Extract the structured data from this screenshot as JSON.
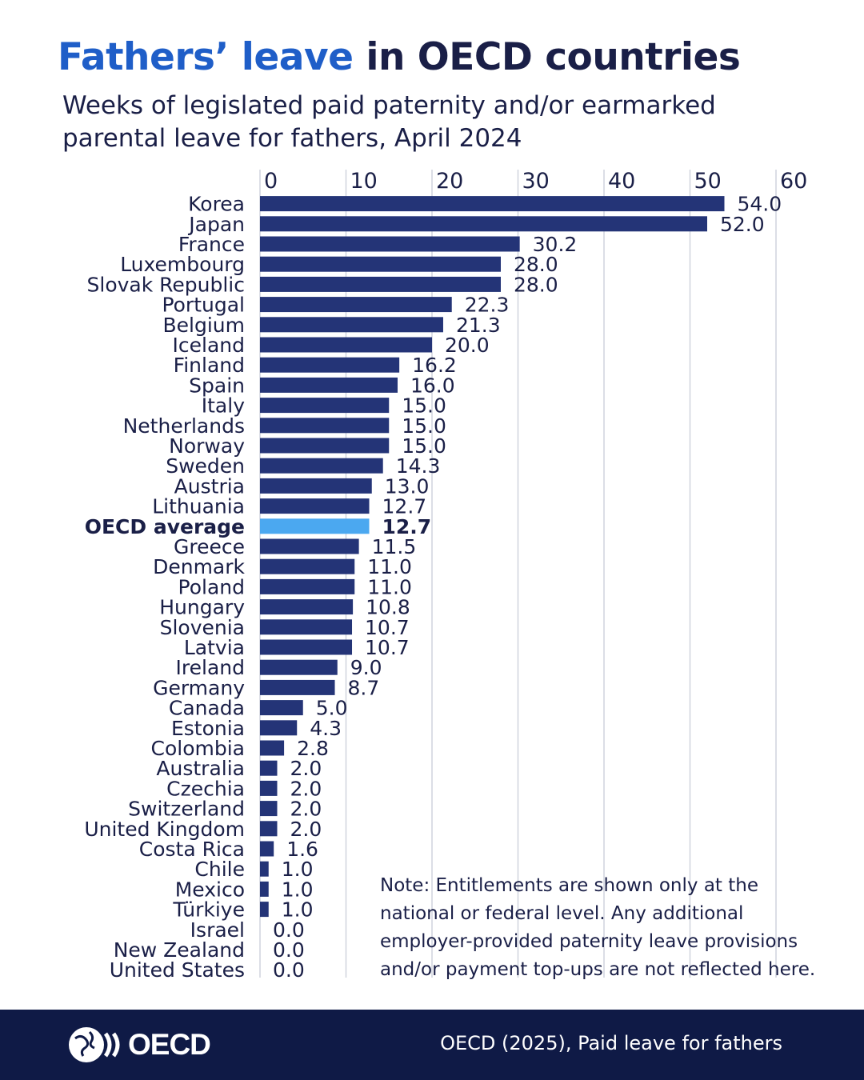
{
  "header": {
    "title_accent": "Fathers’ leave",
    "title_rest": " in OECD countries",
    "subtitle": "Weeks of legislated paid paternity and/or earmarked parental leave for fathers, April 2024"
  },
  "note": "Note: Entitlements are shown only at the national or federal level. Any additional employer-provided paternity leave provisions and/or payment top-ups are not reflected here.",
  "footer": {
    "logo_text": "OECD",
    "source": "OECD (2025), Paid leave for fathers"
  },
  "colors": {
    "bar": "#243477",
    "highlight": "#4ba8f0",
    "text": "#1a1f47",
    "accent": "#1f5ec8",
    "footer_bg": "#0f1a46"
  },
  "chart_data": {
    "type": "bar",
    "orientation": "horizontal",
    "title": "Fathers’ leave in OECD countries",
    "xlabel": "",
    "ylabel": "",
    "xlim": [
      0,
      60
    ],
    "xticks": [
      0,
      10,
      20,
      30,
      40,
      50,
      60
    ],
    "grid": true,
    "highlight": "OECD average",
    "categories": [
      "Korea",
      "Japan",
      "France",
      "Luxembourg",
      "Slovak Republic",
      "Portugal",
      "Belgium",
      "Iceland",
      "Finland",
      "Spain",
      "Italy",
      "Netherlands",
      "Norway",
      "Sweden",
      "Austria",
      "Lithuania",
      "OECD average",
      "Greece",
      "Denmark",
      "Poland",
      "Hungary",
      "Slovenia",
      "Latvia",
      "Ireland",
      "Germany",
      "Canada",
      "Estonia",
      "Colombia",
      "Australia",
      "Czechia",
      "Switzerland",
      "United Kingdom",
      "Costa Rica",
      "Chile",
      "Mexico",
      "Türkiye",
      "Israel",
      "New Zealand",
      "United States"
    ],
    "values": [
      54.0,
      52.0,
      30.2,
      28.0,
      28.0,
      22.3,
      21.3,
      20.0,
      16.2,
      16.0,
      15.0,
      15.0,
      15.0,
      14.3,
      13.0,
      12.7,
      12.7,
      11.5,
      11.0,
      11.0,
      10.8,
      10.7,
      10.7,
      9.0,
      8.7,
      5.0,
      4.3,
      2.8,
      2.0,
      2.0,
      2.0,
      2.0,
      1.6,
      1.0,
      1.0,
      1.0,
      0.0,
      0.0,
      0.0
    ],
    "value_labels": [
      "54.0",
      "52.0",
      "30.2",
      "28.0",
      "28.0",
      "22.3",
      "21.3",
      "20.0",
      "16.2",
      "16.0",
      "15.0",
      "15.0",
      "15.0",
      "14.3",
      "13.0",
      "12.7",
      "12.7",
      "11.5",
      "11.0",
      "11.0",
      "10.8",
      "10.7",
      "10.7",
      "9.0",
      "8.7",
      "5.0",
      "4.3",
      "2.8",
      "2.0",
      "2.0",
      "2.0",
      "2.0",
      "1.6",
      "1.0",
      "1.0",
      "1.0",
      "0.0",
      "0.0",
      "0.0"
    ]
  }
}
